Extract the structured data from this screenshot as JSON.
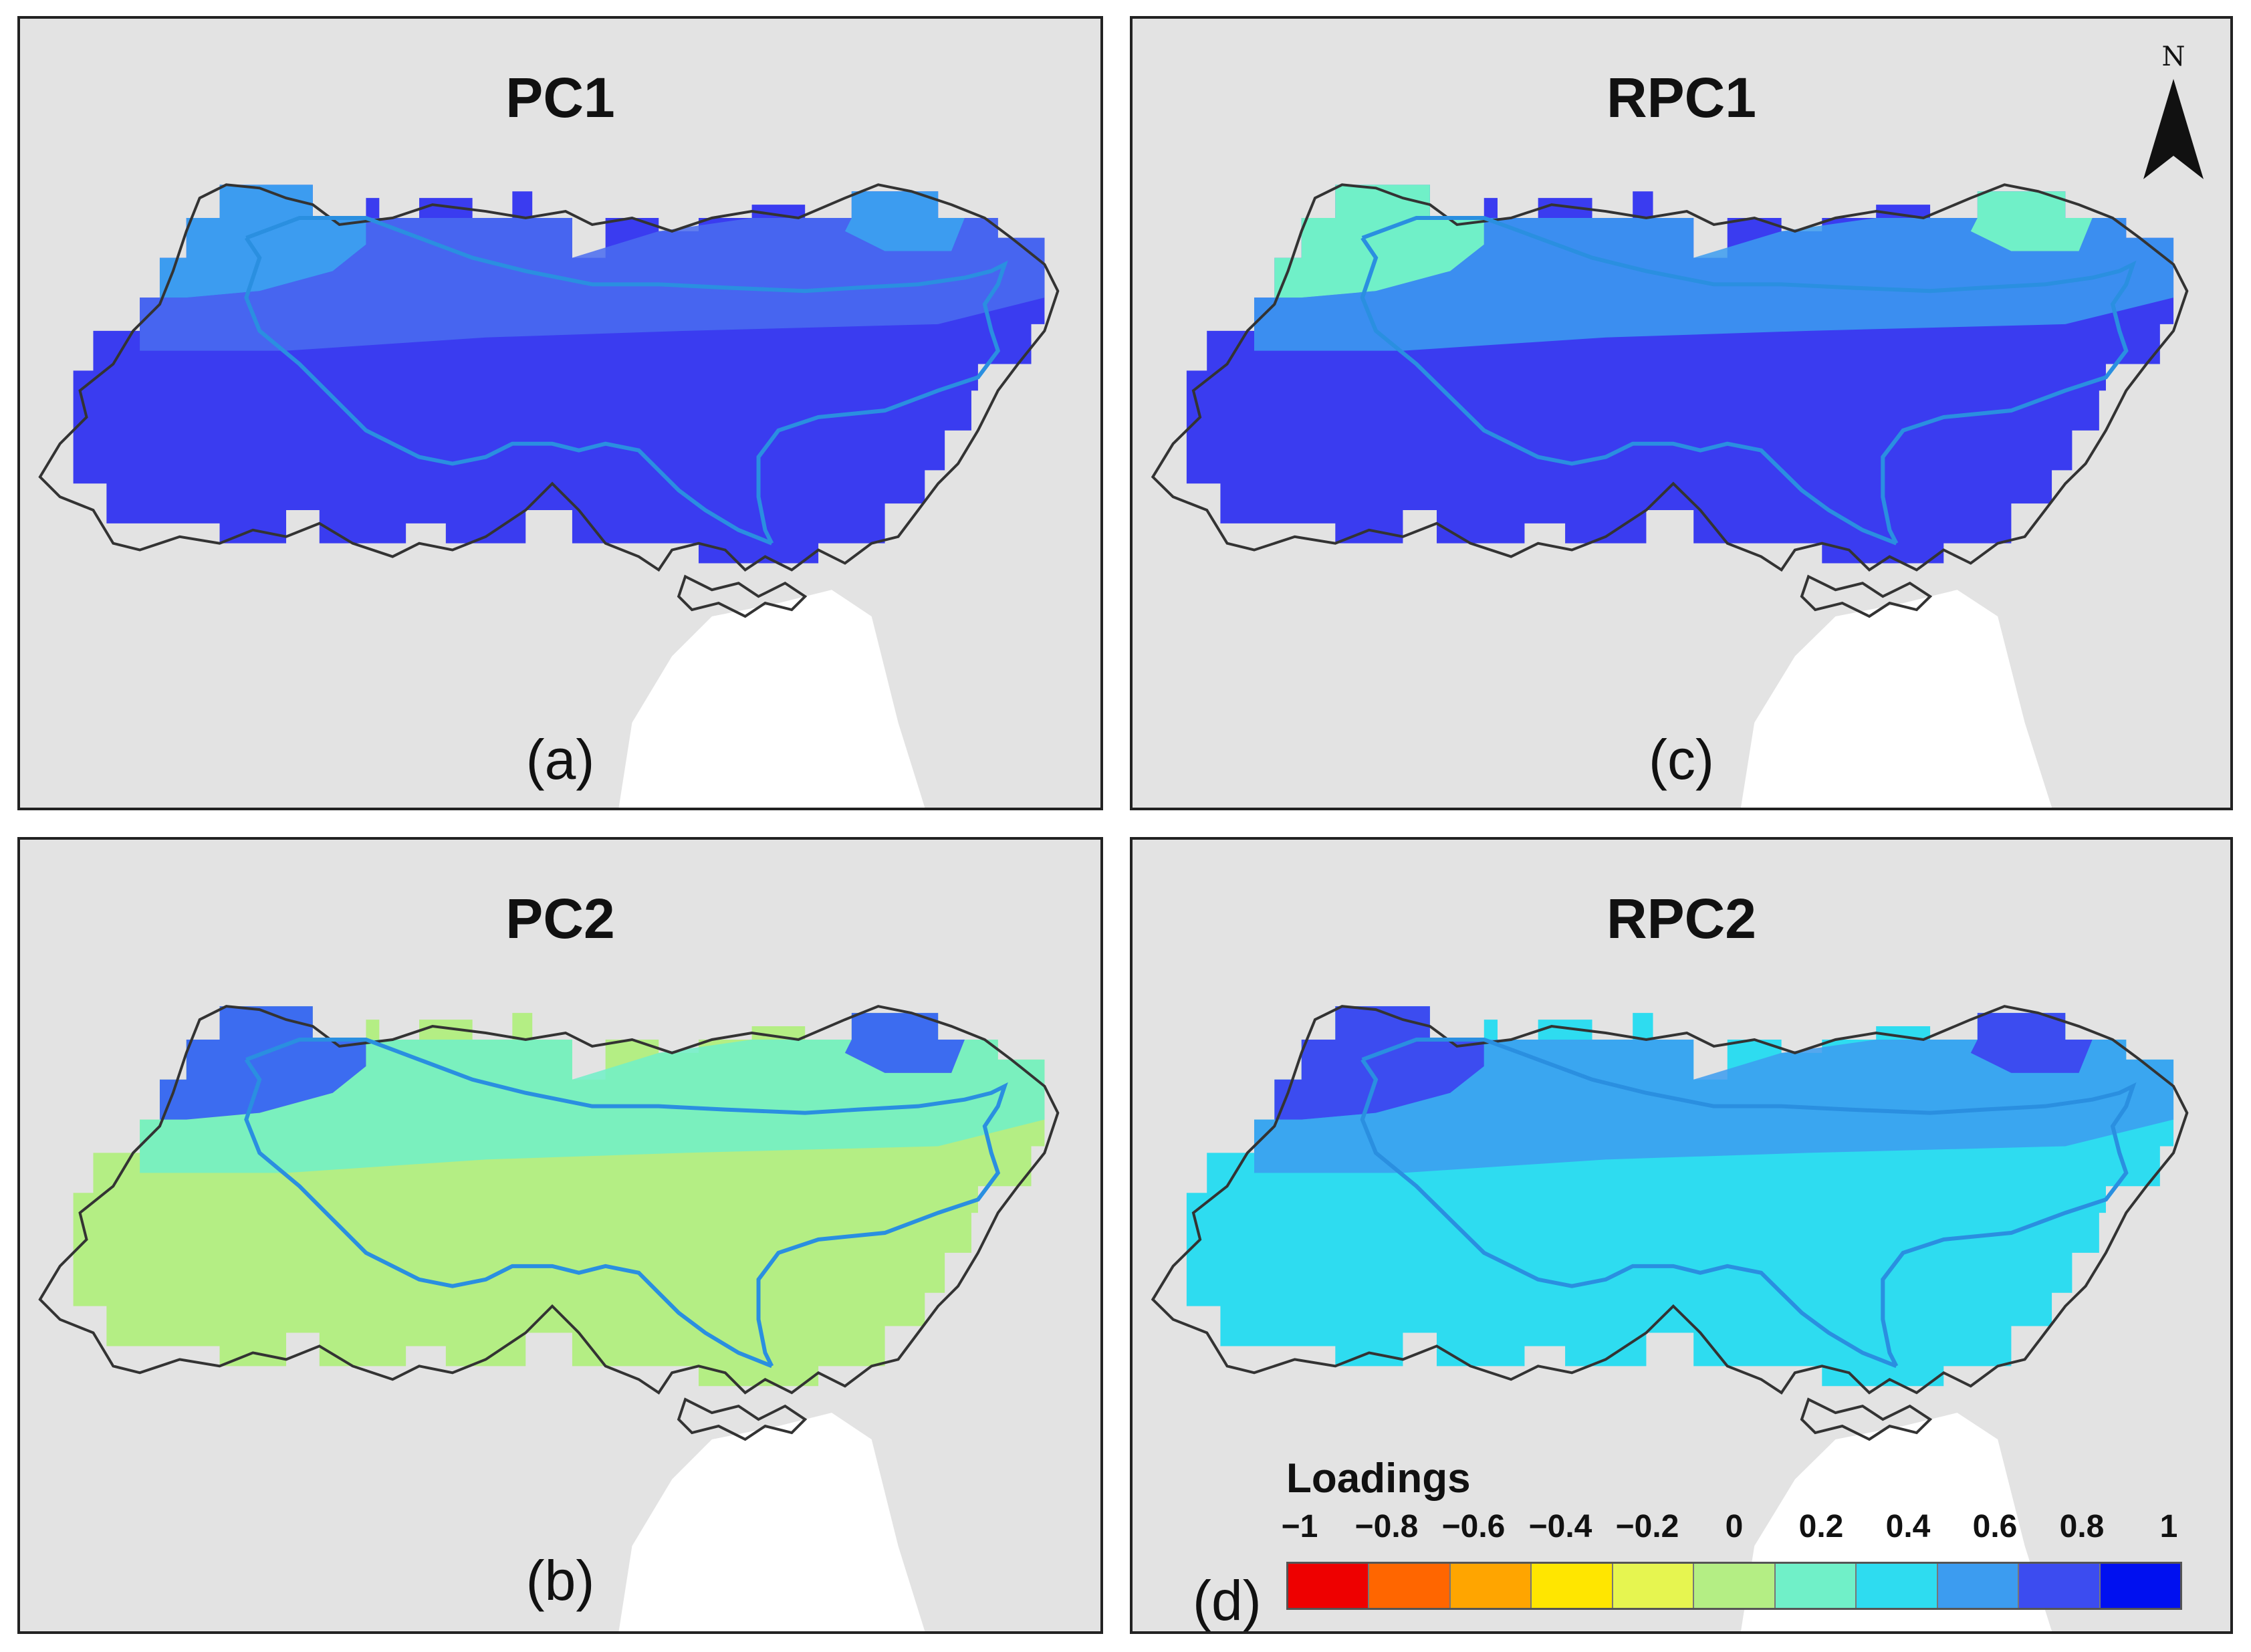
{
  "panels": [
    {
      "id": "a",
      "title": "PC1",
      "label": "(a)"
    },
    {
      "id": "b",
      "title": "PC2",
      "label": "(b)"
    },
    {
      "id": "c",
      "title": "RPC1",
      "label": "(c)"
    },
    {
      "id": "d",
      "title": "RPC2",
      "label": "(d)"
    }
  ],
  "north_arrow": {
    "label": "N"
  },
  "legend": {
    "title": "Loadings",
    "ticks": [
      "-1",
      "-0.8",
      "-0.6",
      "-0.4",
      "-0.2",
      "0",
      "0.2",
      "0.4",
      "0.6",
      "0.8",
      "1"
    ],
    "colors": [
      "#ee0000",
      "#ff6600",
      "#ffa500",
      "#ffe600",
      "#e6f550",
      "#b4ee84",
      "#70f0c8",
      "#2edcf0",
      "#3c9cf0",
      "#3c4cf0",
      "#0010f0"
    ]
  },
  "map_style": {
    "background": "#e3e3e3",
    "sea": "#ffffff",
    "boundary": "#333333",
    "river": "#2a8fe0"
  },
  "fills": {
    "a": {
      "base": "#3a3cf0",
      "north": "#3c9cf0",
      "upper": "#4a6cf0"
    },
    "b": {
      "base": "#b4ee84",
      "north": "#3c6cf0",
      "upper": "#70f0c8"
    },
    "c": {
      "base": "#3a3cf0",
      "north": "#70f0c8",
      "upper": "#3c9cf0"
    },
    "d": {
      "base": "#2edcf0",
      "north": "#3c4cf0",
      "upper": "#3c9cf0"
    }
  }
}
